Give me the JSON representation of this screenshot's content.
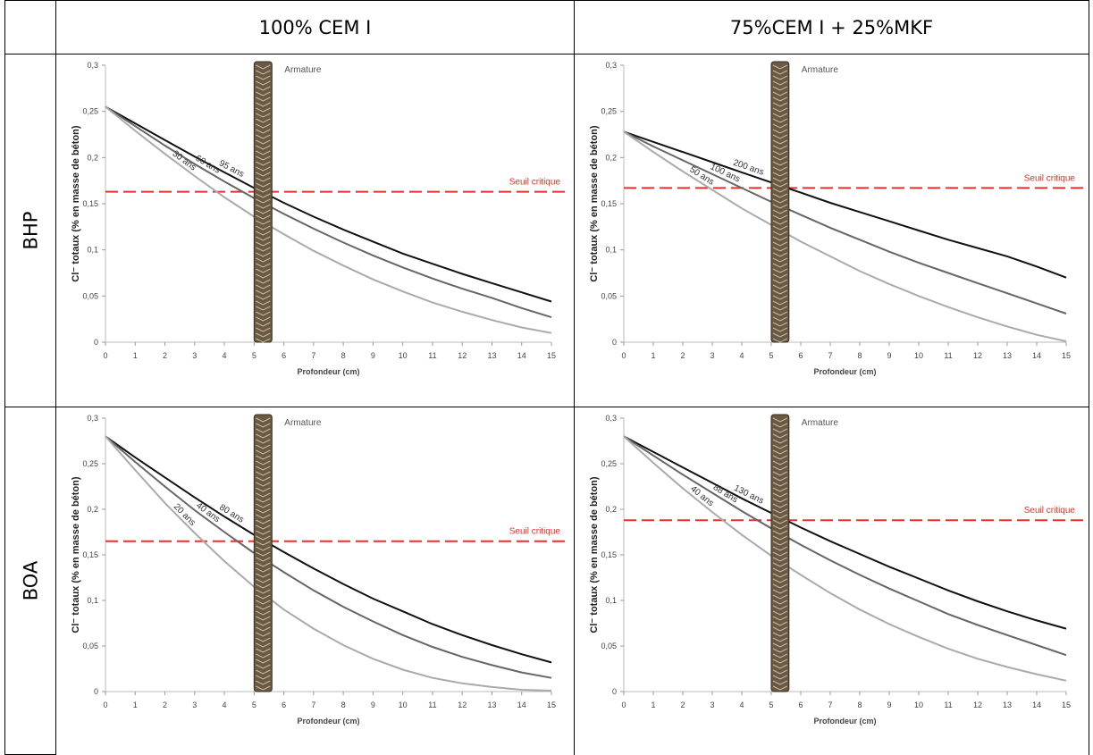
{
  "table": {
    "columns": [
      "100% CEM I",
      "75%CEM I + 25%MKF"
    ],
    "rows": [
      "BHP",
      "BOA"
    ]
  },
  "chart_data": [
    {
      "type": "line",
      "xlabel": "Profondeur (cm)",
      "ylabel": "Cl⁻ totaux (% en masse de béton)",
      "annotation": "Armature",
      "threshold_label": "Seuil critique",
      "threshold": 0.163,
      "threshold_color": "#e8302a",
      "rebar_x": [
        5.0,
        5.6
      ],
      "x": [
        0,
        1,
        2,
        3,
        4,
        5,
        6,
        7,
        8,
        9,
        10,
        11,
        12,
        13,
        14,
        15
      ],
      "xlim": [
        0,
        15
      ],
      "xticks": [
        0,
        1,
        2,
        3,
        4,
        5,
        6,
        7,
        8,
        9,
        10,
        11,
        12,
        13,
        14,
        15
      ],
      "ylim": [
        0,
        0.3
      ],
      "yticks": [
        0,
        {
          "value": 0.05,
          "label": "0,05"
        },
        {
          "value": 0.1,
          "label": "0,1"
        },
        {
          "value": 0.15,
          "label": "0,15"
        },
        {
          "value": 0.2,
          "label": "0,2"
        },
        {
          "value": 0.25,
          "label": "0,25"
        },
        {
          "value": 0.3,
          "label": "0,3"
        }
      ],
      "series": [
        {
          "name": "95 ans",
          "color": "#111111",
          "values": [
            0.255,
            0.237,
            0.219,
            0.201,
            0.184,
            0.167,
            0.151,
            0.136,
            0.122,
            0.109,
            0.096,
            0.085,
            0.074,
            0.064,
            0.054,
            0.044
          ]
        },
        {
          "name": "60 ans",
          "color": "#666666",
          "values": [
            0.255,
            0.234,
            0.213,
            0.193,
            0.174,
            0.156,
            0.139,
            0.123,
            0.108,
            0.094,
            0.081,
            0.069,
            0.058,
            0.048,
            0.037,
            0.027
          ]
        },
        {
          "name": "30 ans",
          "color": "#aaaaaa",
          "values": [
            0.255,
            0.229,
            0.204,
            0.18,
            0.157,
            0.136,
            0.117,
            0.099,
            0.083,
            0.068,
            0.055,
            0.043,
            0.033,
            0.024,
            0.016,
            0.01
          ]
        }
      ]
    },
    {
      "type": "line",
      "xlabel": "Profondeur (cm)",
      "ylabel": "Cl⁻ totaux (% en masse de béton)",
      "annotation": "Armature",
      "threshold_label": "Seuil critique",
      "threshold": 0.167,
      "threshold_color": "#e8302a",
      "rebar_x": [
        5.0,
        5.6
      ],
      "x": [
        0,
        1,
        2,
        3,
        4,
        5,
        6,
        7,
        8,
        9,
        10,
        11,
        12,
        13,
        14,
        15
      ],
      "xlim": [
        0,
        15
      ],
      "xticks": [
        0,
        1,
        2,
        3,
        4,
        5,
        6,
        7,
        8,
        9,
        10,
        11,
        12,
        13,
        14,
        15
      ],
      "ylim": [
        0,
        0.3
      ],
      "yticks": [
        0,
        {
          "value": 0.05,
          "label": "0,05"
        },
        {
          "value": 0.1,
          "label": "0,1"
        },
        {
          "value": 0.15,
          "label": "0,15"
        },
        {
          "value": 0.2,
          "label": "0,2"
        },
        {
          "value": 0.25,
          "label": "0,25"
        },
        {
          "value": 0.3,
          "label": "0,3"
        }
      ],
      "series": [
        {
          "name": "200 ans",
          "color": "#111111",
          "values": [
            0.228,
            0.217,
            0.206,
            0.195,
            0.184,
            0.173,
            0.162,
            0.151,
            0.141,
            0.131,
            0.121,
            0.111,
            0.102,
            0.093,
            0.082,
            0.07
          ]
        },
        {
          "name": "100 ans",
          "color": "#666666",
          "values": [
            0.228,
            0.212,
            0.197,
            0.182,
            0.167,
            0.152,
            0.138,
            0.124,
            0.111,
            0.098,
            0.086,
            0.075,
            0.064,
            0.053,
            0.042,
            0.031
          ]
        },
        {
          "name": "50 ans",
          "color": "#aaaaaa",
          "values": [
            0.228,
            0.206,
            0.185,
            0.165,
            0.145,
            0.127,
            0.109,
            0.093,
            0.077,
            0.063,
            0.05,
            0.038,
            0.027,
            0.017,
            0.008,
            0.001
          ]
        }
      ]
    },
    {
      "type": "line",
      "xlabel": "Profondeur (cm)",
      "ylabel": "Cl⁻ totaux (% en masse de béton)",
      "annotation": "Armature",
      "threshold_label": "Seuil critique",
      "threshold": 0.165,
      "threshold_color": "#e8302a",
      "rebar_x": [
        5.0,
        5.6
      ],
      "x": [
        0,
        1,
        2,
        3,
        4,
        5,
        6,
        7,
        8,
        9,
        10,
        11,
        12,
        13,
        14,
        15
      ],
      "xlim": [
        0,
        15
      ],
      "xticks": [
        0,
        1,
        2,
        3,
        4,
        5,
        6,
        7,
        8,
        9,
        10,
        11,
        12,
        13,
        14,
        15
      ],
      "ylim": [
        0,
        0.3
      ],
      "yticks": [
        0,
        {
          "value": 0.05,
          "label": "0,05"
        },
        {
          "value": 0.1,
          "label": "0,1"
        },
        {
          "value": 0.15,
          "label": "0,15"
        },
        {
          "value": 0.2,
          "label": "0,2"
        },
        {
          "value": 0.25,
          "label": "0,25"
        },
        {
          "value": 0.3,
          "label": "0,3"
        }
      ],
      "series": [
        {
          "name": "80 ans",
          "color": "#111111",
          "values": [
            0.28,
            0.257,
            0.235,
            0.213,
            0.192,
            0.172,
            0.153,
            0.135,
            0.118,
            0.102,
            0.088,
            0.074,
            0.062,
            0.051,
            0.041,
            0.032
          ]
        },
        {
          "name": "40 ans",
          "color": "#666666",
          "values": [
            0.28,
            0.252,
            0.225,
            0.199,
            0.175,
            0.152,
            0.131,
            0.111,
            0.093,
            0.077,
            0.062,
            0.049,
            0.038,
            0.029,
            0.021,
            0.015
          ]
        },
        {
          "name": "20 ans",
          "color": "#aaaaaa",
          "values": [
            0.28,
            0.243,
            0.207,
            0.174,
            0.143,
            0.115,
            0.09,
            0.069,
            0.051,
            0.036,
            0.024,
            0.015,
            0.009,
            0.005,
            0.002,
            0.001
          ]
        }
      ]
    },
    {
      "type": "line",
      "xlabel": "Profondeur (cm)",
      "ylabel": "Cl⁻ totaux (% en masse de béton)",
      "annotation": "Armature",
      "threshold_label": "Seuil critique",
      "threshold": 0.188,
      "threshold_color": "#e8302a",
      "rebar_x": [
        5.0,
        5.6
      ],
      "x": [
        0,
        1,
        2,
        3,
        4,
        5,
        6,
        7,
        8,
        9,
        10,
        11,
        12,
        13,
        14,
        15
      ],
      "xlim": [
        0,
        15
      ],
      "xticks": [
        0,
        1,
        2,
        3,
        4,
        5,
        6,
        7,
        8,
        9,
        10,
        11,
        12,
        13,
        14,
        15
      ],
      "ylim": [
        0,
        0.3
      ],
      "yticks": [
        0,
        {
          "value": 0.05,
          "label": "0,05"
        },
        {
          "value": 0.1,
          "label": "0,1"
        },
        {
          "value": 0.15,
          "label": "0,15"
        },
        {
          "value": 0.2,
          "label": "0,2"
        },
        {
          "value": 0.25,
          "label": "0,25"
        },
        {
          "value": 0.3,
          "label": "0,3"
        }
      ],
      "series": [
        {
          "name": "130 ans",
          "color": "#111111",
          "values": [
            0.28,
            0.263,
            0.246,
            0.229,
            0.212,
            0.196,
            0.18,
            0.165,
            0.151,
            0.137,
            0.124,
            0.111,
            0.099,
            0.088,
            0.078,
            0.069
          ]
        },
        {
          "name": "88 ans",
          "color": "#666666",
          "values": [
            0.28,
            0.259,
            0.238,
            0.218,
            0.198,
            0.179,
            0.161,
            0.144,
            0.128,
            0.113,
            0.099,
            0.085,
            0.073,
            0.062,
            0.051,
            0.04
          ]
        },
        {
          "name": "40 ans",
          "color": "#aaaaaa",
          "values": [
            0.28,
            0.251,
            0.223,
            0.197,
            0.172,
            0.149,
            0.128,
            0.108,
            0.09,
            0.074,
            0.06,
            0.047,
            0.036,
            0.027,
            0.019,
            0.012
          ]
        }
      ]
    }
  ]
}
